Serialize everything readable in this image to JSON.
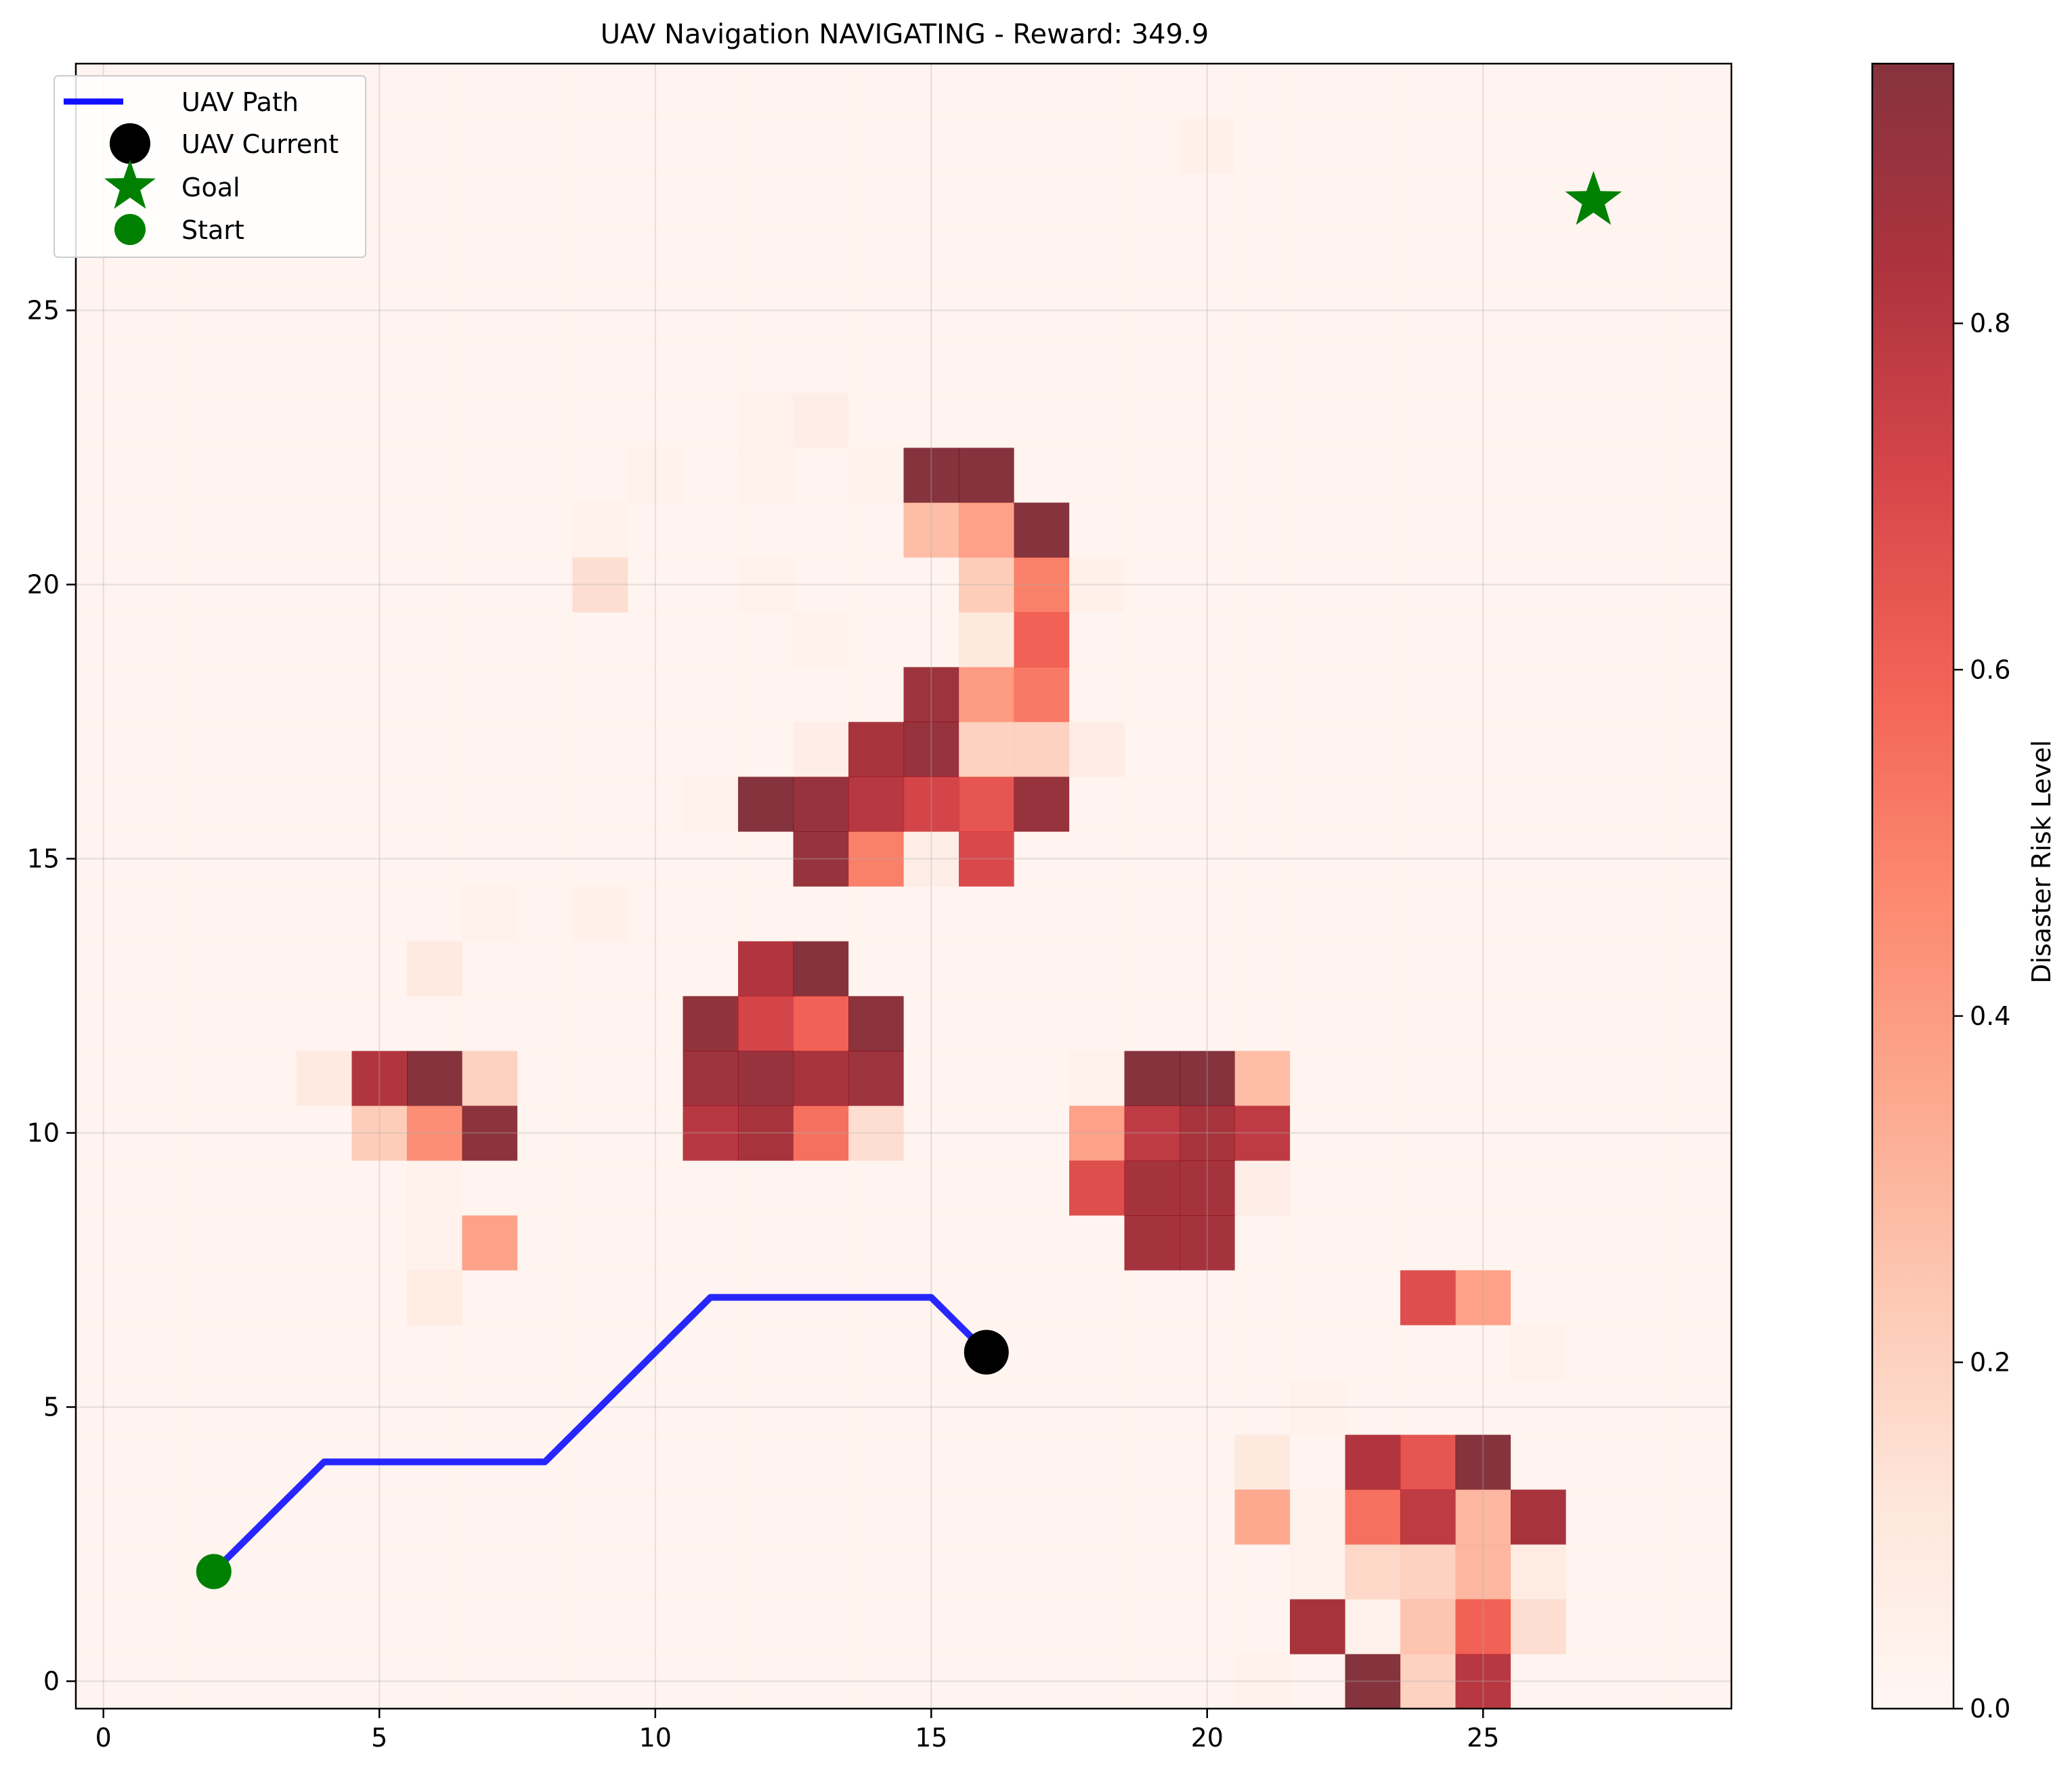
{
  "chart_data": {
    "type": "heatmap",
    "title": "UAV Navigation NAVIGATING - Reward: 349.9",
    "xlabel": "",
    "ylabel": "",
    "xlim": [
      -0.5,
      29.5
    ],
    "ylim": [
      -0.5,
      29.5
    ],
    "xticks": [
      0,
      5,
      10,
      15,
      20,
      25
    ],
    "yticks": [
      0,
      5,
      10,
      15,
      20,
      25
    ],
    "grid": true,
    "colorbar": {
      "label": "Disaster Risk Level",
      "range": [
        0.0,
        0.95
      ],
      "ticks": [
        0.0,
        0.2,
        0.4,
        0.6,
        0.8
      ],
      "tick_labels": [
        "0.0",
        "0.2",
        "0.4",
        "0.6",
        "0.8"
      ],
      "colors": [
        "#fff5f0",
        "#fee0d2",
        "#fcbba1",
        "#fc9272",
        "#fb6a4a",
        "#ef3b2c",
        "#cb181d",
        "#99000d",
        "#67000d"
      ]
    },
    "heatmap_base_value": 0.02,
    "risk_cells": [
      {
        "x": 20,
        "y": 28,
        "v": 0.05
      },
      {
        "x": 12,
        "y": 23,
        "v": 0.04
      },
      {
        "x": 13,
        "y": 23,
        "v": 0.06
      },
      {
        "x": 10,
        "y": 22,
        "v": 0.04
      },
      {
        "x": 12,
        "y": 22,
        "v": 0.04
      },
      {
        "x": 14,
        "y": 22,
        "v": 0.04
      },
      {
        "x": 15,
        "y": 22,
        "v": 0.95
      },
      {
        "x": 16,
        "y": 22,
        "v": 0.95
      },
      {
        "x": 9,
        "y": 21,
        "v": 0.04
      },
      {
        "x": 15,
        "y": 21,
        "v": 0.28
      },
      {
        "x": 16,
        "y": 21,
        "v": 0.38
      },
      {
        "x": 17,
        "y": 21,
        "v": 0.95
      },
      {
        "x": 9,
        "y": 20,
        "v": 0.15
      },
      {
        "x": 12,
        "y": 20,
        "v": 0.04
      },
      {
        "x": 16,
        "y": 20,
        "v": 0.22
      },
      {
        "x": 17,
        "y": 20,
        "v": 0.5
      },
      {
        "x": 18,
        "y": 20,
        "v": 0.05
      },
      {
        "x": 13,
        "y": 19,
        "v": 0.04
      },
      {
        "x": 16,
        "y": 19,
        "v": 0.1
      },
      {
        "x": 17,
        "y": 19,
        "v": 0.6
      },
      {
        "x": 15,
        "y": 18,
        "v": 0.88
      },
      {
        "x": 16,
        "y": 18,
        "v": 0.4
      },
      {
        "x": 17,
        "y": 18,
        "v": 0.52
      },
      {
        "x": 13,
        "y": 17,
        "v": 0.06
      },
      {
        "x": 14,
        "y": 17,
        "v": 0.85
      },
      {
        "x": 15,
        "y": 17,
        "v": 0.9
      },
      {
        "x": 16,
        "y": 17,
        "v": 0.2
      },
      {
        "x": 17,
        "y": 17,
        "v": 0.2
      },
      {
        "x": 18,
        "y": 17,
        "v": 0.07
      },
      {
        "x": 11,
        "y": 16,
        "v": 0.04
      },
      {
        "x": 12,
        "y": 16,
        "v": 0.95
      },
      {
        "x": 13,
        "y": 16,
        "v": 0.9
      },
      {
        "x": 14,
        "y": 16,
        "v": 0.8
      },
      {
        "x": 15,
        "y": 16,
        "v": 0.72
      },
      {
        "x": 16,
        "y": 16,
        "v": 0.65
      },
      {
        "x": 17,
        "y": 16,
        "v": 0.9
      },
      {
        "x": 13,
        "y": 15,
        "v": 0.9
      },
      {
        "x": 14,
        "y": 15,
        "v": 0.5
      },
      {
        "x": 15,
        "y": 15,
        "v": 0.06
      },
      {
        "x": 16,
        "y": 15,
        "v": 0.7
      },
      {
        "x": 7,
        "y": 14,
        "v": 0.04
      },
      {
        "x": 9,
        "y": 14,
        "v": 0.05
      },
      {
        "x": 6,
        "y": 13,
        "v": 0.09
      },
      {
        "x": 12,
        "y": 13,
        "v": 0.82
      },
      {
        "x": 13,
        "y": 13,
        "v": 0.95
      },
      {
        "x": 11,
        "y": 12,
        "v": 0.92
      },
      {
        "x": 12,
        "y": 12,
        "v": 0.72
      },
      {
        "x": 13,
        "y": 12,
        "v": 0.6
      },
      {
        "x": 14,
        "y": 12,
        "v": 0.93
      },
      {
        "x": 4,
        "y": 11,
        "v": 0.09
      },
      {
        "x": 5,
        "y": 11,
        "v": 0.82
      },
      {
        "x": 6,
        "y": 11,
        "v": 0.95
      },
      {
        "x": 7,
        "y": 11,
        "v": 0.2
      },
      {
        "x": 11,
        "y": 11,
        "v": 0.88
      },
      {
        "x": 12,
        "y": 11,
        "v": 0.9
      },
      {
        "x": 13,
        "y": 11,
        "v": 0.85
      },
      {
        "x": 14,
        "y": 11,
        "v": 0.88
      },
      {
        "x": 18,
        "y": 11,
        "v": 0.04
      },
      {
        "x": 19,
        "y": 11,
        "v": 0.95
      },
      {
        "x": 20,
        "y": 11,
        "v": 0.95
      },
      {
        "x": 21,
        "y": 11,
        "v": 0.28
      },
      {
        "x": 5,
        "y": 10,
        "v": 0.22
      },
      {
        "x": 6,
        "y": 10,
        "v": 0.45
      },
      {
        "x": 7,
        "y": 10,
        "v": 0.93
      },
      {
        "x": 11,
        "y": 10,
        "v": 0.8
      },
      {
        "x": 12,
        "y": 10,
        "v": 0.85
      },
      {
        "x": 13,
        "y": 10,
        "v": 0.55
      },
      {
        "x": 14,
        "y": 10,
        "v": 0.15
      },
      {
        "x": 18,
        "y": 10,
        "v": 0.38
      },
      {
        "x": 19,
        "y": 10,
        "v": 0.78
      },
      {
        "x": 20,
        "y": 10,
        "v": 0.85
      },
      {
        "x": 21,
        "y": 10,
        "v": 0.78
      },
      {
        "x": 6,
        "y": 9,
        "v": 0.04
      },
      {
        "x": 18,
        "y": 9,
        "v": 0.68
      },
      {
        "x": 19,
        "y": 9,
        "v": 0.86
      },
      {
        "x": 20,
        "y": 9,
        "v": 0.86
      },
      {
        "x": 21,
        "y": 9,
        "v": 0.06
      },
      {
        "x": 6,
        "y": 8,
        "v": 0.04
      },
      {
        "x": 7,
        "y": 8,
        "v": 0.38
      },
      {
        "x": 19,
        "y": 8,
        "v": 0.86
      },
      {
        "x": 20,
        "y": 8,
        "v": 0.86
      },
      {
        "x": 6,
        "y": 7,
        "v": 0.08
      },
      {
        "x": 24,
        "y": 7,
        "v": 0.68
      },
      {
        "x": 25,
        "y": 7,
        "v": 0.38
      },
      {
        "x": 26,
        "y": 6,
        "v": 0.04
      },
      {
        "x": 22,
        "y": 5,
        "v": 0.04
      },
      {
        "x": 21,
        "y": 4,
        "v": 0.1
      },
      {
        "x": 23,
        "y": 4,
        "v": 0.82
      },
      {
        "x": 24,
        "y": 4,
        "v": 0.65
      },
      {
        "x": 25,
        "y": 4,
        "v": 0.95
      },
      {
        "x": 21,
        "y": 3,
        "v": 0.35
      },
      {
        "x": 22,
        "y": 3,
        "v": 0.04
      },
      {
        "x": 23,
        "y": 3,
        "v": 0.55
      },
      {
        "x": 24,
        "y": 3,
        "v": 0.78
      },
      {
        "x": 25,
        "y": 3,
        "v": 0.3
      },
      {
        "x": 26,
        "y": 3,
        "v": 0.85
      },
      {
        "x": 22,
        "y": 2,
        "v": 0.04
      },
      {
        "x": 23,
        "y": 2,
        "v": 0.18
      },
      {
        "x": 24,
        "y": 2,
        "v": 0.2
      },
      {
        "x": 25,
        "y": 2,
        "v": 0.3
      },
      {
        "x": 26,
        "y": 2,
        "v": 0.08
      },
      {
        "x": 22,
        "y": 1,
        "v": 0.85
      },
      {
        "x": 23,
        "y": 1,
        "v": 0.04
      },
      {
        "x": 24,
        "y": 1,
        "v": 0.25
      },
      {
        "x": 25,
        "y": 1,
        "v": 0.6
      },
      {
        "x": 26,
        "y": 1,
        "v": 0.15
      },
      {
        "x": 21,
        "y": 0,
        "v": 0.04
      },
      {
        "x": 23,
        "y": 0,
        "v": 0.95
      },
      {
        "x": 24,
        "y": 0,
        "v": 0.2
      },
      {
        "x": 25,
        "y": 0,
        "v": 0.8
      }
    ],
    "uav_path": {
      "name": "UAV Path",
      "color": "#1010ff",
      "x": [
        2,
        4,
        8,
        11,
        15,
        16
      ],
      "y": [
        2,
        4,
        4,
        7,
        7,
        6
      ]
    },
    "uav_current": {
      "name": "UAV Current",
      "x": 16,
      "y": 6,
      "color": "#000000"
    },
    "goal": {
      "name": "Goal",
      "x": 27,
      "y": 27,
      "color": "#008000"
    },
    "start": {
      "name": "Start",
      "x": 2,
      "y": 2,
      "color": "#008000"
    },
    "legend_placement": "top-left",
    "legend": [
      "UAV Path",
      "UAV Current",
      "Goal",
      "Start"
    ]
  }
}
